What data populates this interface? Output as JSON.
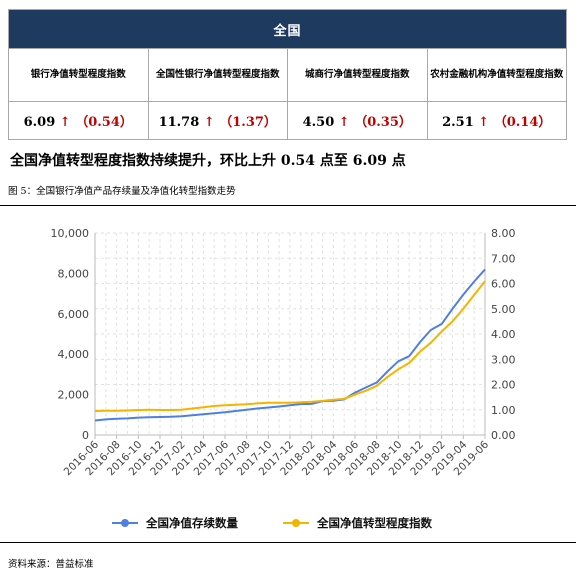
{
  "table": {
    "title": "全国",
    "columns": [
      "银行净值转型程度指数",
      "全国性银行净值转型程度指数",
      "城商行净值转型程度指数",
      "农村金融机构净值转型程度指数"
    ],
    "cells": [
      {
        "value": "6.09",
        "arrow": "↑",
        "change": "（0.54）"
      },
      {
        "value": "11.78",
        "arrow": "↑",
        "change": "（1.37）"
      },
      {
        "value": "4.50",
        "arrow": "↑",
        "change": "（0.35）"
      },
      {
        "value": "2.51",
        "arrow": "↑",
        "change": "（0.14）"
      }
    ]
  },
  "headline": "全国净值转型程度指数持续提升，环比上升 0.54 点至 6.09 点",
  "figure_title": "图 5：全国银行净值产品存续量及净值化转型指数走势",
  "source": "资料来源：普益标准",
  "colors": {
    "series1": "#4f7fe0",
    "series2": "#f4b400",
    "header": "#1f3a5f",
    "accent": "#c00000"
  },
  "chart_data": {
    "type": "line",
    "grid": true,
    "legend_position": "bottom",
    "yleft_ticks": [
      "0",
      "2,000",
      "4,000",
      "6,000",
      "8,000",
      "10,000"
    ],
    "yright_ticks": [
      "0.00",
      "1.00",
      "2.00",
      "3.00",
      "4.00",
      "5.00",
      "6.00",
      "7.00",
      "8.00"
    ],
    "x_ticks": [
      "2016-06",
      "2016-08",
      "2016-10",
      "2016-12",
      "2017-02",
      "2017-04",
      "2017-06",
      "2017-08",
      "2017-10",
      "2017-12",
      "2018-02",
      "2018-04",
      "2018-06",
      "2018-08",
      "2018-10",
      "2018-12",
      "2019-02",
      "2019-04",
      "2019-06"
    ],
    "yleft_lim": [
      0,
      10000
    ],
    "yright_lim": [
      0,
      8
    ],
    "series": [
      {
        "name": "全国净值存续数量",
        "axis": "left",
        "values": [
          720,
          770,
          800,
          820,
          860,
          880,
          890,
          900,
          930,
          980,
          1030,
          1080,
          1130,
          1190,
          1250,
          1310,
          1360,
          1410,
          1470,
          1530,
          1540,
          1680,
          1700,
          1760,
          2100,
          2350,
          2600,
          3150,
          3650,
          3900,
          4600,
          5200,
          5500,
          6250,
          6950,
          7600,
          8200
        ]
      },
      {
        "name": "全国净值转型程度指数",
        "axis": "right",
        "values": [
          0.95,
          0.96,
          0.96,
          0.97,
          0.99,
          1.0,
          0.99,
          0.99,
          1.0,
          1.05,
          1.1,
          1.15,
          1.18,
          1.2,
          1.22,
          1.25,
          1.28,
          1.28,
          1.28,
          1.3,
          1.32,
          1.35,
          1.4,
          1.43,
          1.6,
          1.75,
          1.95,
          2.3,
          2.6,
          2.85,
          3.3,
          3.65,
          4.1,
          4.5,
          5.0,
          5.55,
          6.09
        ]
      }
    ]
  }
}
